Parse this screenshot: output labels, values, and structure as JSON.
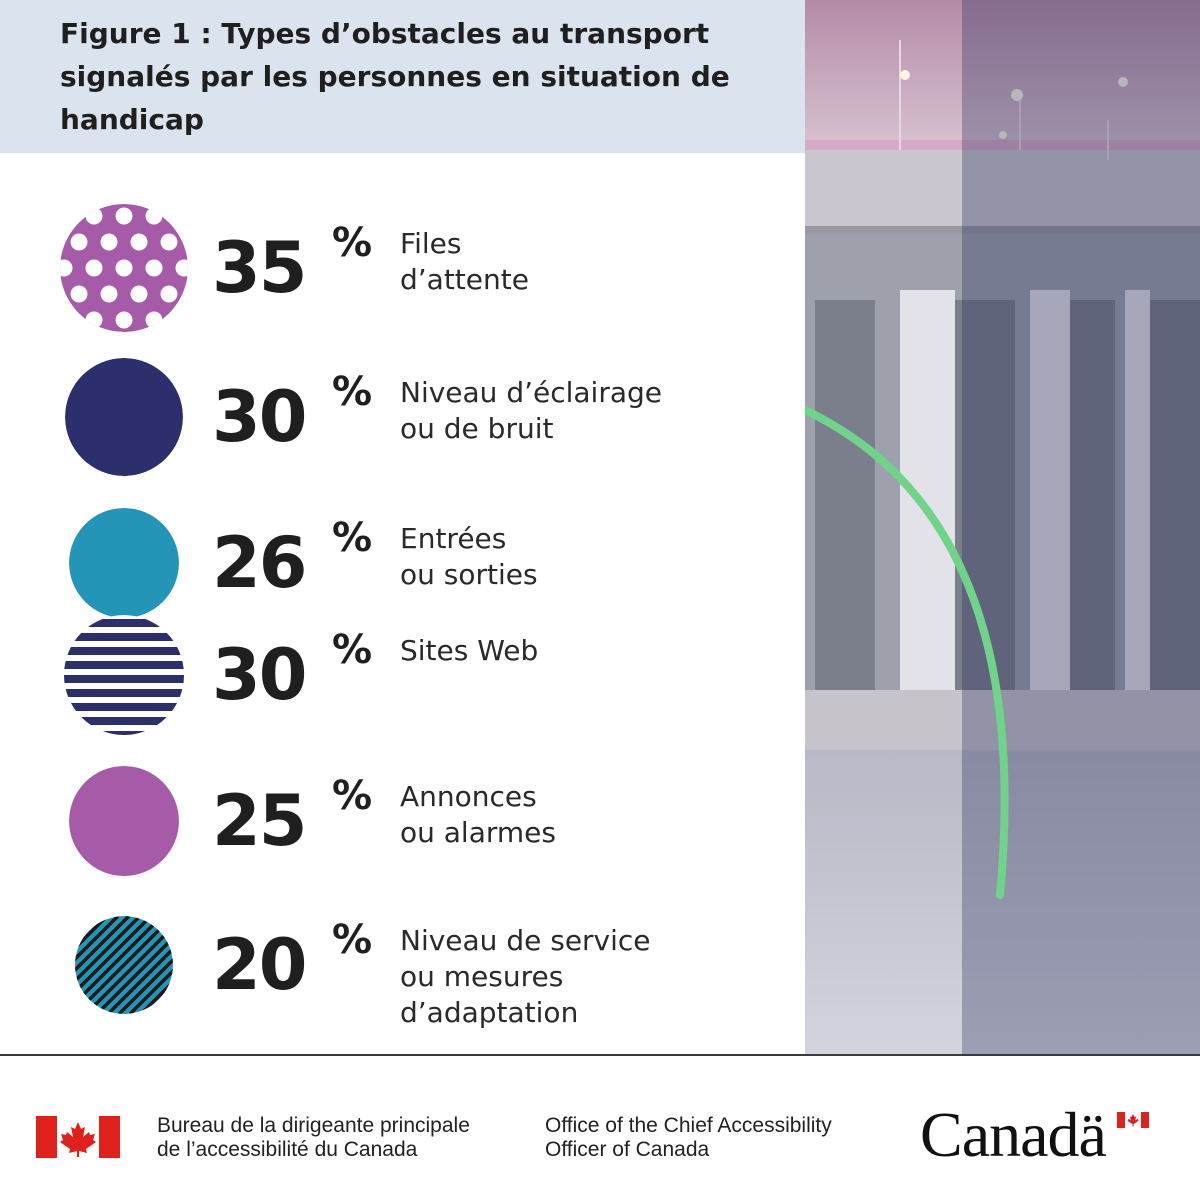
{
  "title": "Figure 1 : Types d’obstacles au transport signalés par les personnes en situation de handicap",
  "chart_data": {
    "type": "bar",
    "title": "Figure 1 : Types d’obstacles au transport signalés par les personnes en situation de handicap",
    "unit": "%",
    "categories": [
      "Files d’attente",
      "Niveau d’éclairage ou de bruit",
      "Entrées ou sorties",
      "Sites Web",
      "Annonces ou alarmes",
      "Niveau de service ou mesures d’adaptation"
    ],
    "values": [
      35,
      30,
      26,
      30,
      25,
      20
    ],
    "items": [
      {
        "value": "35",
        "pct": "%",
        "label_lines": [
          "Files",
          "d’attente"
        ],
        "marker": "purple-polka-dot",
        "color": "#a65ba8"
      },
      {
        "value": "30",
        "pct": "%",
        "label_lines": [
          "Niveau d’éclairage",
          "ou de bruit"
        ],
        "marker": "solid-navy",
        "color": "#2c2f6b"
      },
      {
        "value": "26",
        "pct": "%",
        "label_lines": [
          "Entrées",
          "ou sorties"
        ],
        "marker": "solid-teal",
        "color": "#2396b7"
      },
      {
        "value": "30",
        "pct": "%",
        "label_lines": [
          "Sites Web"
        ],
        "marker": "navy-horizontal-stripes",
        "color": "#2c2f6b"
      },
      {
        "value": "25",
        "pct": "%",
        "label_lines": [
          "Annonces",
          "ou alarmes"
        ],
        "marker": "solid-purple",
        "color": "#a65ba8"
      },
      {
        "value": "20",
        "pct": "%",
        "label_lines": [
          "Niveau de service",
          "ou mesures",
          "d’adaptation"
        ],
        "marker": "teal-diagonal-stripes",
        "color": "#2396b7"
      }
    ]
  },
  "footer": {
    "fr_lines": [
      "Bureau de la dirigeante principale",
      "de l’accessibilité du Canada"
    ],
    "en_lines": [
      "Office of the Chief Accessibility",
      "Officer of Canada"
    ],
    "wordmark": "Canadä"
  },
  "colors": {
    "title_background": "#dbe3ee",
    "text": "#1f1f1f",
    "flag_red": "#e0201b",
    "photo_arc": "#6fd38a"
  },
  "image": "bridge-photo"
}
